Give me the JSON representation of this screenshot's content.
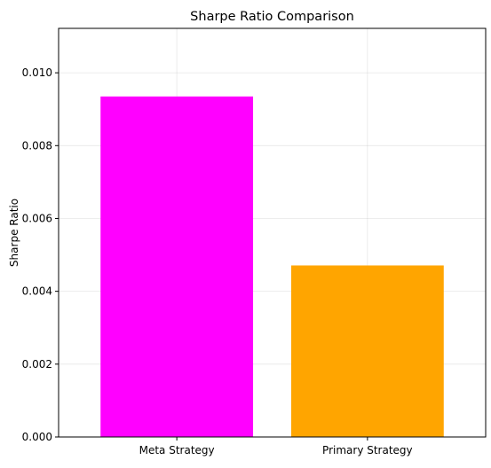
{
  "chart_data": {
    "type": "bar",
    "title": "Sharpe Ratio Comparison",
    "xlabel": "",
    "ylabel": "Sharpe Ratio",
    "categories": [
      "Meta Strategy",
      "Primary Strategy"
    ],
    "values": [
      0.00935,
      0.00471
    ],
    "colors": [
      "#ff00ff",
      "#ffa500"
    ],
    "ylim": [
      0,
      0.01122
    ],
    "yticks": [
      0.0,
      0.002,
      0.004,
      0.006,
      0.008,
      0.01
    ],
    "ytick_labels": [
      "0.000",
      "0.002",
      "0.004",
      "0.006",
      "0.008",
      "0.010"
    ],
    "grid": true,
    "legend": "none"
  }
}
